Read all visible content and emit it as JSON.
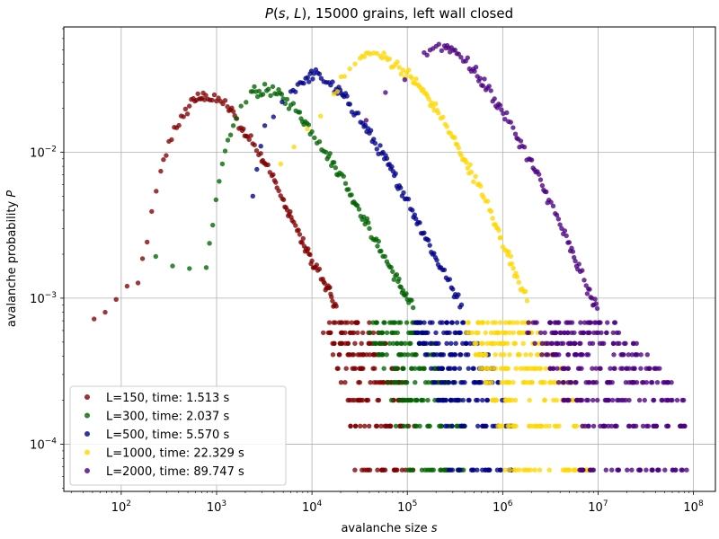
{
  "chart_data": {
    "type": "scatter",
    "title": "P(s, L), 15000 grains, left wall closed",
    "xlabel": "avalanche size s",
    "ylabel": "avalanche probability P",
    "xscale": "log",
    "yscale": "log",
    "xlim": [
      25,
      170000000
    ],
    "ylim": [
      4.75e-05,
      0.072
    ],
    "x_ticks": [
      {
        "value": 100,
        "base": "10",
        "exp": "2"
      },
      {
        "value": 1000,
        "base": "10",
        "exp": "3"
      },
      {
        "value": 10000,
        "base": "10",
        "exp": "4"
      },
      {
        "value": 100000,
        "base": "10",
        "exp": "5"
      },
      {
        "value": 1000000,
        "base": "10",
        "exp": "6"
      },
      {
        "value": 10000000,
        "base": "10",
        "exp": "7"
      },
      {
        "value": 100000000,
        "base": "10",
        "exp": "8"
      }
    ],
    "y_ticks": [
      {
        "value": 0.0001,
        "base": "10",
        "exp": "−4"
      },
      {
        "value": 0.001,
        "base": "10",
        "exp": "−3"
      },
      {
        "value": 0.01,
        "base": "10",
        "exp": "−2"
      }
    ],
    "grid": true,
    "legend_position": "lower-left",
    "series": [
      {
        "name": "L=150, time: 1.513 s",
        "color": "#800000",
        "points": [
          [
            52,
            0.00072
          ],
          [
            150,
            0.00127
          ],
          [
            260,
            0.0074
          ],
          [
            360,
            0.0148
          ],
          [
            450,
            0.0175
          ],
          [
            570,
            0.0233
          ],
          [
            660,
            0.0232
          ],
          [
            770,
            0.0245
          ],
          [
            900,
            0.0227
          ],
          [
            1100,
            0.0223
          ],
          [
            1300,
            0.0205
          ],
          [
            1550,
            0.0178
          ],
          [
            1800,
            0.0147
          ],
          [
            2100,
            0.0128
          ],
          [
            2500,
            0.0112
          ],
          [
            2900,
            0.0098
          ],
          [
            3300,
            0.0082
          ],
          [
            3800,
            0.0069
          ],
          [
            4300,
            0.0057
          ],
          [
            4900,
            0.0048
          ],
          [
            5500,
            0.004
          ],
          [
            6200,
            0.0034
          ],
          [
            7000,
            0.0029
          ],
          [
            7900,
            0.0024
          ],
          [
            8900,
            0.0021
          ],
          [
            10000,
            0.0018
          ],
          [
            11500,
            0.00155
          ],
          [
            13000,
            0.00135
          ],
          [
            14500,
            0.00118
          ],
          [
            16000,
            0.00102
          ],
          [
            18000,
            0.00088
          ]
        ],
        "tail_min": 13000,
        "tail_max": 120000
      },
      {
        "name": "L=300, time: 2.037 s",
        "color": "#006400",
        "points": [
          [
            230,
            0.00193
          ],
          [
            780,
            0.00162
          ],
          [
            1150,
            0.0083
          ],
          [
            1600,
            0.017
          ],
          [
            2300,
            0.026
          ],
          [
            2800,
            0.0262
          ],
          [
            3500,
            0.027
          ],
          [
            4300,
            0.025
          ],
          [
            5000,
            0.0232
          ],
          [
            6000,
            0.021
          ],
          [
            7200,
            0.0188
          ],
          [
            8500,
            0.0162
          ],
          [
            10000,
            0.0138
          ],
          [
            12000,
            0.0118
          ],
          [
            14000,
            0.01
          ],
          [
            16500,
            0.0085
          ],
          [
            19500,
            0.0072
          ],
          [
            22500,
            0.0061
          ],
          [
            26000,
            0.0051
          ],
          [
            30000,
            0.0043
          ],
          [
            35000,
            0.0036
          ],
          [
            40000,
            0.003
          ],
          [
            46000,
            0.0025
          ],
          [
            53000,
            0.0021
          ],
          [
            61000,
            0.00178
          ],
          [
            70000,
            0.00152
          ],
          [
            80000,
            0.0013
          ],
          [
            90000,
            0.00113
          ],
          [
            100000,
            0.00098
          ],
          [
            115000,
            0.00086
          ]
        ],
        "tail_min": 40000,
        "tail_max": 400000
      },
      {
        "name": "L=500, time: 5.570 s",
        "color": "#00008b",
        "points": [
          [
            2400,
            0.005
          ],
          [
            3200,
            0.0152
          ],
          [
            6000,
            0.026
          ],
          [
            7500,
            0.03
          ],
          [
            9000,
            0.0325
          ],
          [
            10500,
            0.0345
          ],
          [
            12500,
            0.032
          ],
          [
            15000,
            0.03
          ],
          [
            18000,
            0.027
          ],
          [
            21000,
            0.0245
          ],
          [
            25000,
            0.0213
          ],
          [
            29000,
            0.0185
          ],
          [
            34000,
            0.0158
          ],
          [
            40000,
            0.0135
          ],
          [
            46000,
            0.0115
          ],
          [
            54000,
            0.0098
          ],
          [
            63000,
            0.0082
          ],
          [
            73000,
            0.0069
          ],
          [
            85000,
            0.0057
          ],
          [
            98000,
            0.0048
          ],
          [
            113000,
            0.004
          ],
          [
            130000,
            0.0033
          ],
          [
            150000,
            0.0028
          ],
          [
            172000,
            0.0023
          ],
          [
            197000,
            0.0019
          ],
          [
            225000,
            0.00162
          ],
          [
            255000,
            0.00138
          ],
          [
            290000,
            0.00118
          ],
          [
            330000,
            0.00102
          ],
          [
            370000,
            0.0009
          ]
        ],
        "tail_min": 120000,
        "tail_max": 1300000
      },
      {
        "name": "L=1000, time: 22.329 s",
        "color": "#ffd700",
        "points": [
          [
            4700,
            0.0083
          ],
          [
            17000,
            0.025
          ],
          [
            22000,
            0.033
          ],
          [
            32000,
            0.044
          ],
          [
            41000,
            0.047
          ],
          [
            52000,
            0.0455
          ],
          [
            62000,
            0.043
          ],
          [
            75000,
            0.04
          ],
          [
            90000,
            0.0365
          ],
          [
            108000,
            0.033
          ],
          [
            128000,
            0.029
          ],
          [
            152000,
            0.0255
          ],
          [
            180000,
            0.0218
          ],
          [
            212000,
            0.0185
          ],
          [
            250000,
            0.0155
          ],
          [
            295000,
            0.0128
          ],
          [
            345000,
            0.0107
          ],
          [
            405000,
            0.0088
          ],
          [
            470000,
            0.0073
          ],
          [
            545000,
            0.006
          ],
          [
            630000,
            0.0049
          ],
          [
            730000,
            0.004
          ],
          [
            840000,
            0.0032
          ],
          [
            960000,
            0.0026
          ],
          [
            1100000,
            0.0021
          ],
          [
            1250000,
            0.00172
          ],
          [
            1420000,
            0.0014
          ],
          [
            1600000,
            0.00116
          ],
          [
            1800000,
            0.00096
          ]
        ],
        "tail_min": 380000,
        "tail_max": 8000000
      },
      {
        "name": "L=2000, time: 89.747 s",
        "color": "#4b0082",
        "points": [
          [
            37000,
            0.0165
          ],
          [
            150000,
            0.048
          ],
          [
            200000,
            0.053
          ],
          [
            245000,
            0.0535
          ],
          [
            290000,
            0.052
          ],
          [
            345000,
            0.047
          ],
          [
            410000,
            0.042
          ],
          [
            490000,
            0.037
          ],
          [
            580000,
            0.032
          ],
          [
            690000,
            0.0275
          ],
          [
            820000,
            0.0232
          ],
          [
            970000,
            0.0195
          ],
          [
            1150000,
            0.0162
          ],
          [
            1360000,
            0.0133
          ],
          [
            1600000,
            0.011
          ],
          [
            1890000,
            0.009
          ],
          [
            2220000,
            0.0073
          ],
          [
            2600000,
            0.0059
          ],
          [
            3050000,
            0.0047
          ],
          [
            3560000,
            0.0038
          ],
          [
            4150000,
            0.003
          ],
          [
            4830000,
            0.0024
          ],
          [
            5600000,
            0.0019
          ],
          [
            6500000,
            0.00152
          ],
          [
            7500000,
            0.00122
          ],
          [
            8600000,
            0.001
          ],
          [
            9800000,
            0.00085
          ]
        ],
        "tail_min": 1800000,
        "tail_max": 88000000
      }
    ],
    "tail_levels": [
      0.00068,
      0.00058,
      0.00049,
      0.00041,
      0.00033,
      0.000265,
      0.0002,
      0.000133,
      6.65e-05
    ]
  }
}
